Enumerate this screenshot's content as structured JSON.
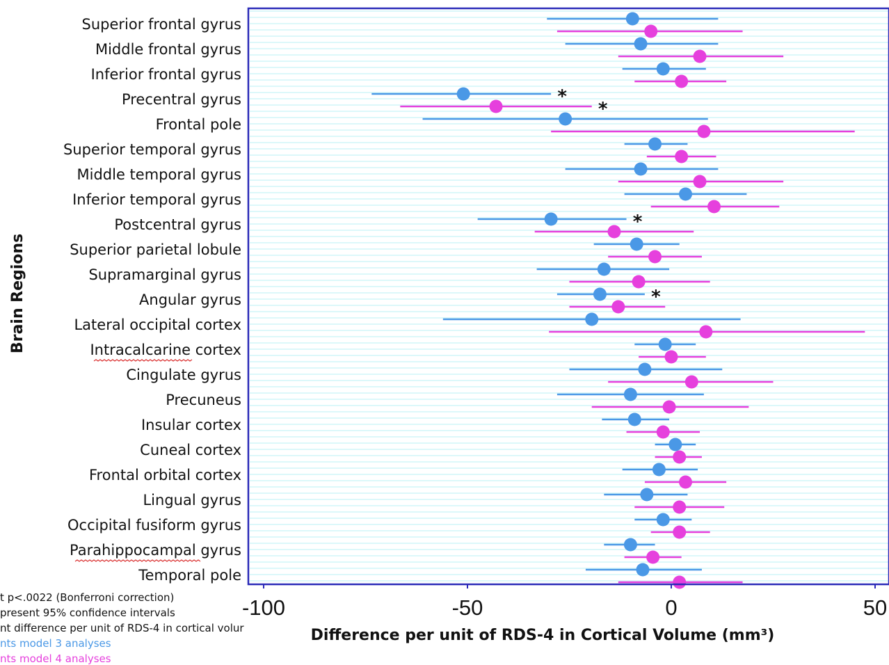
{
  "chart_data": {
    "type": "scatter",
    "subtype": "forest-plot",
    "title": "",
    "xlabel": "Difference per unit of RDS-4 in Cortical Volume (mm³)",
    "ylabel": "Brain Regions",
    "xlim": [
      -103,
      53
    ],
    "xticks": [
      -100,
      -50,
      0,
      50
    ],
    "xtick_labels": [
      "-100",
      "-50",
      "0",
      "50"
    ],
    "grid": "horizontal light-cyan lines",
    "categories": [
      "Superior frontal gyrus",
      "Middle frontal gyrus",
      "Inferior frontal gyrus",
      "Precentral gyrus",
      "Frontal pole",
      "Superior temporal gyrus",
      "Middle temporal gyrus",
      "Inferior temporal gyrus",
      "Postcentral gyrus",
      "Superior parietal lobule",
      "Supramarginal gyrus",
      "Angular gyrus",
      "Lateral occipital cortex",
      "Intracalcarine cortex",
      "Cingulate gyrus",
      "Precuneus",
      "Insular cortex",
      "Cuneal cortex",
      "Frontal orbital cortex",
      "Lingual gyrus",
      "Occipital fusiform gyrus",
      "Parahippocampal gyrus",
      "Temporal pole"
    ],
    "series": [
      {
        "name": "model 3 analyses",
        "color": "#4a98e6",
        "values": [
          -9.5,
          -7.5,
          -2,
          -51,
          -26,
          -4,
          -7.5,
          3.5,
          -29.5,
          -8.5,
          -16.5,
          -17.5,
          -19.5,
          -1.5,
          -6.5,
          -10,
          -9,
          1,
          -3,
          -6,
          -2,
          -10,
          -7
        ],
        "ci_low": [
          -30.5,
          -26,
          -12,
          -73.5,
          -61,
          -11.5,
          -26,
          -11.5,
          -47.5,
          -19,
          -33,
          -28,
          -56,
          -9,
          -25,
          -28,
          -17,
          -4,
          -12,
          -16.5,
          -9,
          -16.5,
          -21
        ],
        "ci_high": [
          11.5,
          11.5,
          8.5,
          -29.5,
          9,
          4,
          11.5,
          18.5,
          -11,
          2,
          -0.5,
          -6.5,
          17,
          6,
          12.5,
          8,
          -0.5,
          6,
          6.5,
          4,
          5,
          -4,
          7.5
        ],
        "significant": [
          false,
          false,
          false,
          true,
          false,
          false,
          false,
          false,
          true,
          false,
          false,
          true,
          false,
          false,
          false,
          false,
          false,
          false,
          false,
          false,
          false,
          false,
          false
        ]
      },
      {
        "name": "model 4 analyses",
        "color": "#e640dd",
        "values": [
          -5,
          7,
          2.5,
          -43,
          8,
          2.5,
          7,
          10.5,
          -14,
          -4,
          -8,
          -13,
          8.5,
          0,
          5,
          -0.5,
          -2,
          2,
          3.5,
          2,
          2,
          -4.5,
          2
        ],
        "ci_low": [
          -28,
          -13,
          -9,
          -66.5,
          -29.5,
          -6,
          -13,
          -5,
          -33.5,
          -15.5,
          -25,
          -25,
          -30,
          -8,
          -15.5,
          -19.5,
          -11,
          -4,
          -6.5,
          -9,
          -5,
          -11.5,
          -13
        ],
        "ci_high": [
          17.5,
          27.5,
          13.5,
          -19.5,
          45,
          11,
          27.5,
          26.5,
          5.5,
          7.5,
          9.5,
          -1.5,
          47.5,
          8.5,
          25,
          19,
          7,
          7.5,
          13.5,
          13,
          9.5,
          2.5,
          17.5
        ],
        "significant": [
          false,
          false,
          false,
          true,
          false,
          false,
          false,
          false,
          false,
          false,
          false,
          false,
          false,
          false,
          false,
          false,
          false,
          false,
          false,
          false,
          false,
          false,
          false
        ]
      }
    ],
    "annotation_symbol": "*",
    "legend_lines": [
      "t p<.0022 (Bonferroni correction)",
      "present 95% confidence intervals",
      "nt difference per unit of RDS-4 in cortical volur",
      "nts model 3 analyses",
      "nts model 4 analyses"
    ]
  },
  "colors": {
    "frame": "#2a2ab8",
    "grid": "#c8f3f6",
    "model3": "#4a98e6",
    "model4": "#e640dd",
    "spellcheck": "#d92c2c"
  }
}
